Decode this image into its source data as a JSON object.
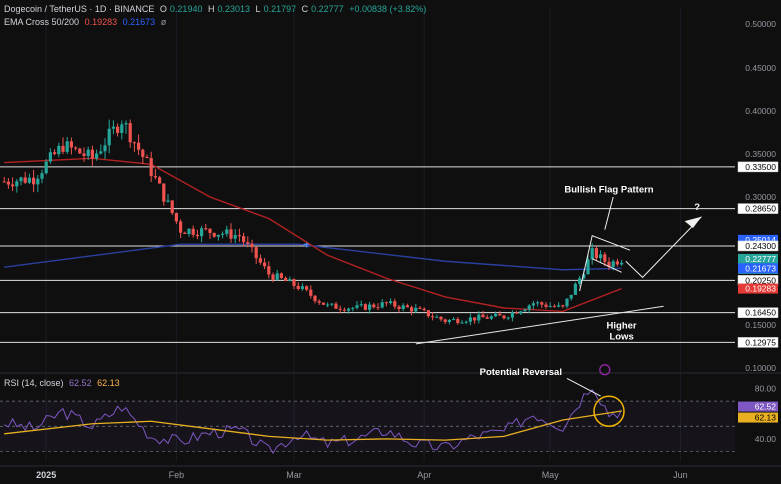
{
  "header": {
    "symbol": "Dogecoin / TetherUS · 1D · BINANCE",
    "open_label": "O",
    "open": "0.21940",
    "high_label": "H",
    "high": "0.23013",
    "low_label": "L",
    "low": "0.21797",
    "close_label": "C",
    "close": "0.22777",
    "change": "+0.00838 (+3.82%)",
    "ema_label": "EMA Cross 50/200",
    "ema50": "0.19283",
    "ema200": "0.21673",
    "ema_extra": "ø",
    "rsi_label": "RSI (14, close)",
    "rsi_value": "62.52",
    "rsi_ma": "62.13"
  },
  "colors": {
    "background": "#0f0f0f",
    "up": "#26a69a",
    "down": "#ef5350",
    "ema50": "#b22222",
    "ema200": "#2a3f9e",
    "rsi": "#7e57c2",
    "rsi_ma": "#e8b020",
    "level": "#e0e0e0",
    "annotation": "#ffffff",
    "reversal_circle": "#f0b400"
  },
  "chart_data": [
    {
      "type": "candlestick",
      "title": "Dogecoin / TetherUS · 1D · BINANCE",
      "x_tick_labels": [
        "2025",
        "Feb",
        "Mar",
        "Apr",
        "May",
        "Jun"
      ],
      "y_tick_labels": [
        "0.50000",
        "0.45000",
        "0.40000",
        "0.35000",
        "0.30000",
        "0.25000",
        "0.15000",
        "0.10000"
      ],
      "ylim": [
        0.085,
        0.52
      ],
      "horizontal_levels": [
        0.335,
        0.2865,
        0.243,
        0.2025,
        0.1645,
        0.12975
      ],
      "price_labels": [
        {
          "label": "0.33500",
          "value": 0.335,
          "kind": "level"
        },
        {
          "label": "0.28650",
          "value": 0.2865,
          "kind": "level"
        },
        {
          "label": "0.25014",
          "value": 0.25014,
          "kind": "high"
        },
        {
          "label": "0.24300",
          "value": 0.243,
          "kind": "level"
        },
        {
          "label": "0.22777",
          "value": 0.22777,
          "kind": "last",
          "countdown": "08:53:47"
        },
        {
          "label": "0.21673",
          "value": 0.21673,
          "kind": "ema200"
        },
        {
          "label": "0.20250",
          "value": 0.2025,
          "kind": "level"
        },
        {
          "label": "0.19283",
          "value": 0.19283,
          "kind": "ema50"
        },
        {
          "label": "0.16450",
          "value": 0.1645,
          "kind": "level"
        },
        {
          "label": "0.12975",
          "value": 0.12975,
          "kind": "level"
        }
      ],
      "close_series_approx": [
        {
          "date": "2024-12-22",
          "close": 0.318
        },
        {
          "date": "2024-12-29",
          "close": 0.322
        },
        {
          "date": "2025-01-05",
          "close": 0.36
        },
        {
          "date": "2025-01-12",
          "close": 0.345
        },
        {
          "date": "2025-01-19",
          "close": 0.39
        },
        {
          "date": "2025-01-26",
          "close": 0.33
        },
        {
          "date": "2025-02-02",
          "close": 0.262
        },
        {
          "date": "2025-02-09",
          "close": 0.26
        },
        {
          "date": "2025-02-16",
          "close": 0.255
        },
        {
          "date": "2025-02-23",
          "close": 0.21
        },
        {
          "date": "2025-03-02",
          "close": 0.195
        },
        {
          "date": "2025-03-09",
          "close": 0.172
        },
        {
          "date": "2025-03-16",
          "close": 0.17
        },
        {
          "date": "2025-03-23",
          "close": 0.175
        },
        {
          "date": "2025-03-30",
          "close": 0.168
        },
        {
          "date": "2025-04-06",
          "close": 0.155
        },
        {
          "date": "2025-04-13",
          "close": 0.158
        },
        {
          "date": "2025-04-20",
          "close": 0.16
        },
        {
          "date": "2025-04-27",
          "close": 0.176
        },
        {
          "date": "2025-05-04",
          "close": 0.17
        },
        {
          "date": "2025-05-08",
          "close": 0.205
        },
        {
          "date": "2025-05-11",
          "close": 0.235
        },
        {
          "date": "2025-05-15",
          "close": 0.222
        },
        {
          "date": "2025-05-18",
          "close": 0.2278
        }
      ],
      "ema50_approx": [
        {
          "date": "2024-12-22",
          "value": 0.34
        },
        {
          "date": "2025-01-12",
          "value": 0.345
        },
        {
          "date": "2025-01-26",
          "value": 0.338
        },
        {
          "date": "2025-02-09",
          "value": 0.3
        },
        {
          "date": "2025-02-23",
          "value": 0.275
        },
        {
          "date": "2025-03-09",
          "value": 0.232
        },
        {
          "date": "2025-03-23",
          "value": 0.205
        },
        {
          "date": "2025-04-06",
          "value": 0.183
        },
        {
          "date": "2025-04-20",
          "value": 0.17
        },
        {
          "date": "2025-05-04",
          "value": 0.166
        },
        {
          "date": "2025-05-18",
          "value": 0.1928
        }
      ],
      "ema200_approx": [
        {
          "date": "2024-12-22",
          "value": 0.218
        },
        {
          "date": "2025-01-19",
          "value": 0.236
        },
        {
          "date": "2025-02-02",
          "value": 0.245
        },
        {
          "date": "2025-03-02",
          "value": 0.245
        },
        {
          "date": "2025-04-06",
          "value": 0.225
        },
        {
          "date": "2025-05-04",
          "value": 0.215
        },
        {
          "date": "2025-05-18",
          "value": 0.2167
        }
      ],
      "annotations": [
        {
          "text": "Bullish Flag Pattern",
          "date": "2025-05-15",
          "value": 0.305
        },
        {
          "text": "?",
          "date": "2025-06-05",
          "value": 0.285
        },
        {
          "text": "Higher Lows",
          "date": "2025-05-18",
          "value": 0.146
        },
        {
          "text": "Potential Reversal",
          "date": "2025-04-24",
          "value": 0.092
        }
      ]
    },
    {
      "type": "line",
      "title": "RSI (14, close)",
      "y_tick_labels": [
        "80.00",
        "40.00"
      ],
      "ylim": [
        20,
        90
      ],
      "series": [
        {
          "name": "RSI",
          "values_approx": [
            {
              "date": "2024-12-22",
              "value": 53
            },
            {
              "date": "2024-12-29",
              "value": 48
            },
            {
              "date": "2025-01-05",
              "value": 62
            },
            {
              "date": "2025-01-12",
              "value": 50
            },
            {
              "date": "2025-01-19",
              "value": 66
            },
            {
              "date": "2025-01-26",
              "value": 42
            },
            {
              "date": "2025-02-02",
              "value": 38
            },
            {
              "date": "2025-02-09",
              "value": 45
            },
            {
              "date": "2025-02-16",
              "value": 47
            },
            {
              "date": "2025-02-23",
              "value": 30
            },
            {
              "date": "2025-03-02",
              "value": 44
            },
            {
              "date": "2025-03-09",
              "value": 36
            },
            {
              "date": "2025-03-16",
              "value": 40
            },
            {
              "date": "2025-03-23",
              "value": 47
            },
            {
              "date": "2025-03-30",
              "value": 36
            },
            {
              "date": "2025-04-06",
              "value": 33
            },
            {
              "date": "2025-04-13",
              "value": 42
            },
            {
              "date": "2025-04-20",
              "value": 46
            },
            {
              "date": "2025-04-27",
              "value": 60
            },
            {
              "date": "2025-05-04",
              "value": 50
            },
            {
              "date": "2025-05-08",
              "value": 70
            },
            {
              "date": "2025-05-11",
              "value": 84
            },
            {
              "date": "2025-05-15",
              "value": 60
            },
            {
              "date": "2025-05-18",
              "value": 62.52
            }
          ]
        },
        {
          "name": "RSI-based MA",
          "values_approx": [
            {
              "date": "2024-12-22",
              "value": 44
            },
            {
              "date": "2025-01-12",
              "value": 52
            },
            {
              "date": "2025-01-26",
              "value": 54
            },
            {
              "date": "2025-02-09",
              "value": 48
            },
            {
              "date": "2025-02-23",
              "value": 42
            },
            {
              "date": "2025-03-09",
              "value": 39
            },
            {
              "date": "2025-03-23",
              "value": 40
            },
            {
              "date": "2025-04-06",
              "value": 39
            },
            {
              "date": "2025-04-20",
              "value": 42
            },
            {
              "date": "2025-05-04",
              "value": 55
            },
            {
              "date": "2025-05-18",
              "value": 62.13
            }
          ]
        }
      ],
      "guide_levels": [
        70,
        50,
        30
      ],
      "right_labels": [
        {
          "label": "62.52",
          "kind": "rsi"
        },
        {
          "label": "62.13",
          "kind": "ma"
        }
      ]
    }
  ]
}
